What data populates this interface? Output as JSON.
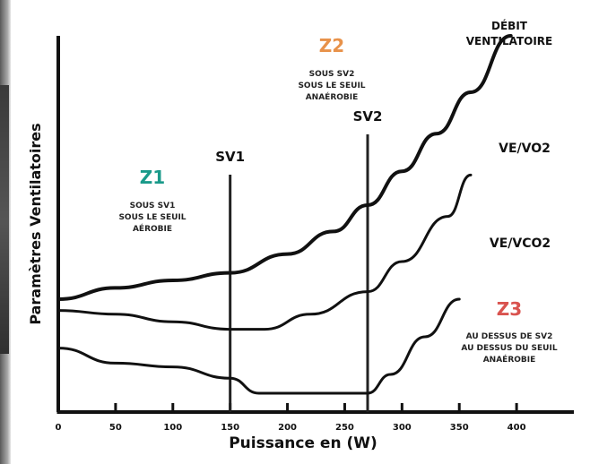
{
  "chart_data": {
    "type": "line",
    "xlabel": "Puissance en (W)",
    "ylabel": "Paramètres Ventilatoires",
    "xlim": [
      0,
      450
    ],
    "ylim": [
      0,
      100
    ],
    "x_ticks": [
      "0",
      "50",
      "100",
      "150",
      "200",
      "250",
      "300",
      "350",
      "400"
    ],
    "series": [
      {
        "name": "DÉBIT VENTILATOIRE",
        "x": [
          0,
          50,
          100,
          150,
          200,
          240,
          270,
          300,
          330,
          360,
          395
        ],
        "y": [
          30,
          33,
          35,
          37,
          42,
          48,
          55,
          64,
          74,
          85,
          100
        ]
      },
      {
        "name": "VE/VO2",
        "x": [
          0,
          50,
          100,
          150,
          180,
          220,
          270,
          300,
          340,
          360
        ],
        "y": [
          27,
          26,
          24,
          22,
          22,
          26,
          32,
          40,
          52,
          63
        ]
      },
      {
        "name": "VE/VCO2",
        "x": [
          0,
          50,
          100,
          150,
          175,
          220,
          270,
          290,
          320,
          350
        ],
        "y": [
          17,
          13,
          12,
          9,
          5,
          5,
          5,
          10,
          20,
          30
        ]
      }
    ],
    "thresholds": [
      {
        "label": "SV1",
        "x": 150
      },
      {
        "label": "SV2",
        "x": 270
      }
    ],
    "zones": [
      {
        "title": "Z1",
        "lines": [
          "SOUS SV1",
          "SOUS LE SEUIL",
          "AÉROBIE"
        ],
        "color": "#1a9a8a"
      },
      {
        "title": "Z2",
        "lines": [
          "SOUS SV2",
          "SOUS LE SEUIL",
          "ANAÉROBIE"
        ],
        "color": "#e8924a"
      },
      {
        "title": "Z3",
        "lines": [
          "AU DESSUS DE SV2",
          "AU DESSUS DU SEUIL",
          "ANAÉROBIE"
        ],
        "color": "#d9534f"
      }
    ],
    "grid": false,
    "legend": "inline labels"
  },
  "colors": {
    "line": "#111111",
    "axis": "#111111"
  }
}
